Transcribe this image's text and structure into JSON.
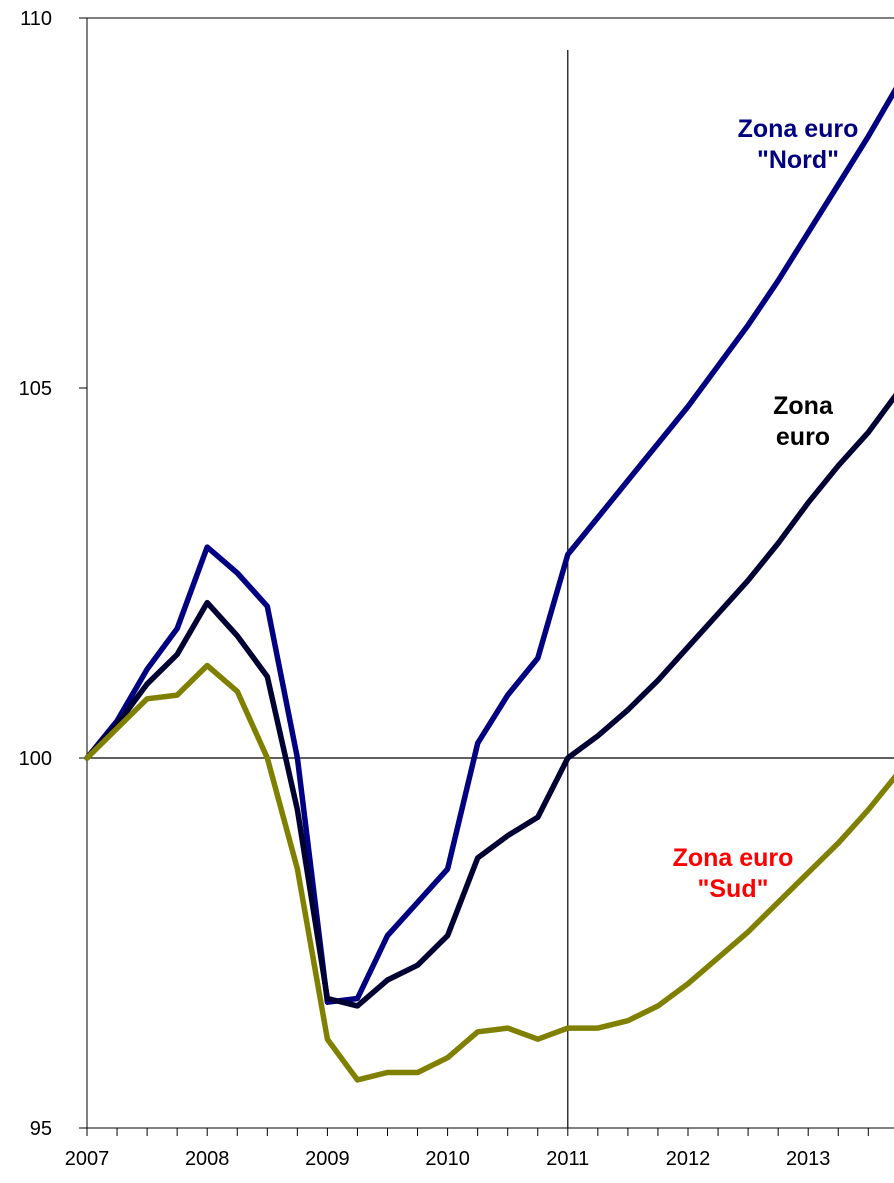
{
  "chart_data": {
    "type": "line",
    "title": "",
    "xlabel": "",
    "ylabel": "",
    "xlim": [
      2007,
      2013.75
    ],
    "ylim": [
      95,
      110
    ],
    "x_ticks": [
      "2007",
      "2008",
      "2009",
      "2010",
      "2011",
      "2012",
      "2013"
    ],
    "y_ticks": [
      "95",
      "100",
      "105",
      "110"
    ],
    "reference_lines": {
      "x": 2011,
      "y": 100
    },
    "grid": false,
    "x": [
      2007,
      2007.25,
      2007.5,
      2007.75,
      2008,
      2008.25,
      2008.5,
      2008.75,
      2009,
      2009.25,
      2009.5,
      2009.75,
      2010,
      2010.25,
      2010.5,
      2010.75,
      2011,
      2011.25,
      2011.5,
      2011.75,
      2012,
      2012.25,
      2012.5,
      2012.75,
      2013,
      2013.25,
      2013.5,
      2013.75
    ],
    "series": [
      {
        "name": "Zona euro \"Nord\"",
        "label_lines": [
          "Zona euro",
          "\"Nord\""
        ],
        "color": "#000080",
        "label_color": "#000080",
        "values": [
          100,
          100.5,
          101.2,
          101.75,
          102.85,
          102.5,
          102.05,
          100,
          96.7,
          96.75,
          97.6,
          98.05,
          98.5,
          100.2,
          100.85,
          101.35,
          102.75,
          103.25,
          103.75,
          104.25,
          104.75,
          105.3,
          105.85,
          106.45,
          107.1,
          107.75,
          108.4,
          109.1
        ]
      },
      {
        "name": "Zona euro",
        "label_lines": [
          "Zona",
          "euro"
        ],
        "color": "#000033",
        "label_color": "#000000",
        "values": [
          100,
          100.45,
          101.0,
          101.4,
          102.1,
          101.65,
          101.1,
          99.3,
          96.75,
          96.65,
          97.0,
          97.2,
          97.6,
          98.65,
          98.95,
          99.2,
          100,
          100.3,
          100.65,
          101.05,
          101.5,
          101.95,
          102.4,
          102.9,
          103.45,
          103.95,
          104.4,
          104.95
        ]
      },
      {
        "name": "Zona euro \"Sud\"",
        "label_lines": [
          "Zona euro",
          "\"Sud\""
        ],
        "color": "#808000",
        "label_color": "#ff0000",
        "values": [
          100,
          100.4,
          100.8,
          100.85,
          101.25,
          100.9,
          100,
          98.5,
          96.2,
          95.65,
          95.75,
          95.75,
          95.95,
          96.3,
          96.35,
          96.2,
          96.35,
          96.35,
          96.45,
          96.65,
          96.95,
          97.3,
          97.65,
          98.05,
          98.45,
          98.85,
          99.3,
          99.8
        ]
      }
    ]
  }
}
